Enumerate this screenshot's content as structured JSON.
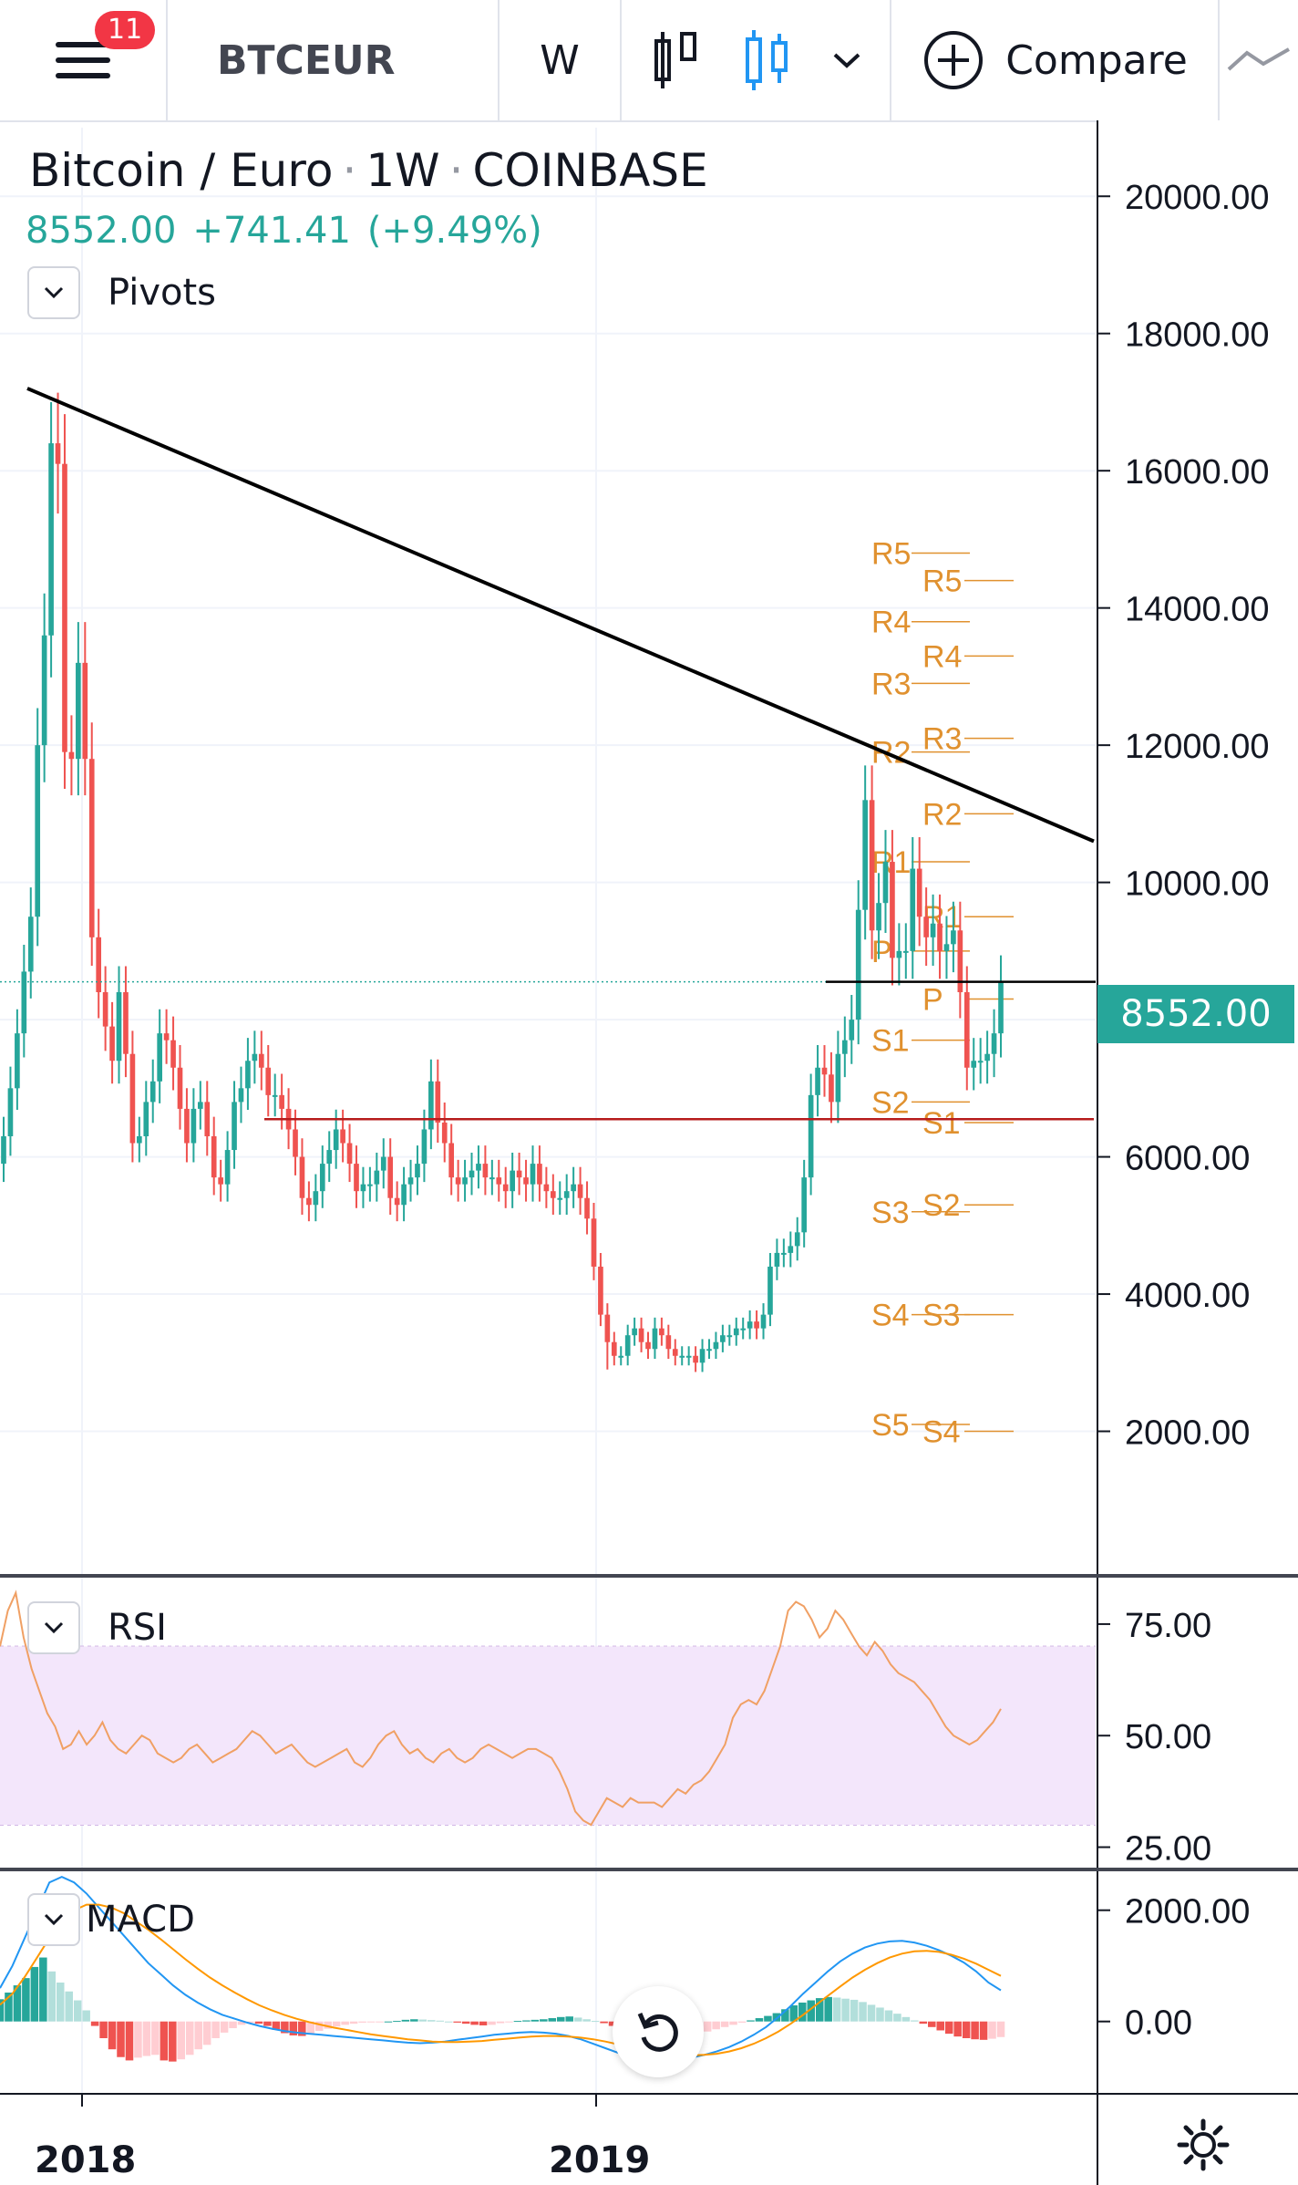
{
  "toolbar": {
    "notification_count": "11",
    "symbol": "BTCEUR",
    "interval": "W",
    "compare_label": "Compare",
    "icons": [
      "hamburger-menu-icon",
      "bar-style-icon",
      "candle-style-icon",
      "chevron-down-icon",
      "plus-circle-icon",
      "line-indicator-icon"
    ]
  },
  "legend": {
    "name": "Bitcoin / Euro",
    "interval": "1W",
    "exchange": "COINBASE",
    "last": "8552.00",
    "change": "+741.41",
    "change_pct": "(+9.49%)",
    "study_label": "Pivots"
  },
  "colors": {
    "up": "#26a69a",
    "down": "#ef5350",
    "pivot": "#e0912f",
    "rsi_line": "#f0a064",
    "rsi_band": "#f3e6fb",
    "macd": "#2196f3",
    "signal": "#ff9800",
    "price_tag": "#26a69a"
  },
  "price_tag": "8552.00",
  "rsi_pane": {
    "label": "RSI",
    "ticks": [
      "75.00",
      "50.00",
      "25.00"
    ]
  },
  "macd_pane": {
    "label": "MACD",
    "ticks": [
      "2000.00",
      "0.00"
    ]
  },
  "x_labels": [
    "2018",
    "2019"
  ],
  "pivots": {
    "set1": [
      "R5",
      "R4",
      "R3",
      "R2",
      "R1",
      "P",
      "S1",
      "S2",
      "S3",
      "S4",
      "S5"
    ],
    "set2": [
      "R5",
      "R4",
      "R3",
      "R2",
      "R1",
      "P",
      "S1",
      "S2",
      "S3",
      "S4"
    ]
  },
  "chart_data": [
    {
      "type": "candlestick",
      "title": "Bitcoin / Euro · 1W · COINBASE",
      "ylim": [
        0,
        21000
      ],
      "y_ticks": [
        "20000.00",
        "18000.00",
        "16000.00",
        "14000.00",
        "12000.00",
        "10000.00",
        "8000.00",
        "6000.00",
        "4000.00",
        "2000.00"
      ],
      "x_ticks": [
        "2018",
        "2019"
      ],
      "close": [
        6300,
        7000,
        7800,
        8700,
        9500,
        12000,
        13600,
        16400,
        16100,
        11900,
        11800,
        13200,
        11800,
        9200,
        8400,
        7900,
        7400,
        8400,
        7500,
        6200,
        6300,
        6800,
        7100,
        7800,
        7700,
        7300,
        6700,
        6200,
        6700,
        6800,
        6300,
        5700,
        5600,
        6100,
        6800,
        7000,
        7400,
        7500,
        7300,
        6900,
        6900,
        6700,
        6400,
        6000,
        5400,
        5300,
        5500,
        5900,
        6100,
        6400,
        6200,
        5900,
        5500,
        5600,
        5600,
        5800,
        6000,
        5400,
        5300,
        5600,
        5700,
        5900,
        6400,
        7100,
        6500,
        6200,
        5700,
        5600,
        5700,
        5800,
        5900,
        5700,
        5700,
        5600,
        5500,
        5800,
        5700,
        5600,
        5900,
        5600,
        5500,
        5400,
        5400,
        5500,
        5600,
        5400,
        5100,
        4400,
        3700,
        3300,
        3100,
        3100,
        3400,
        3500,
        3300,
        3200,
        3500,
        3400,
        3200,
        3100,
        3100,
        3100,
        3000,
        3200,
        3200,
        3300,
        3400,
        3400,
        3500,
        3500,
        3600,
        3500,
        3700,
        4400,
        4600,
        4600,
        4700,
        4900,
        5700,
        6900,
        7300,
        7200,
        6800,
        7500,
        7700,
        8000,
        9600,
        11200,
        9300,
        9700,
        10300,
        8900,
        9000,
        9000,
        10200,
        9500,
        9200,
        9400,
        9000,
        9100,
        9300,
        8400,
        7300,
        7400,
        7400,
        7500,
        7800,
        8552
      ],
      "high": 17000,
      "low": 2900,
      "trendline": {
        "from": {
          "week": 0,
          "price": 17200
        },
        "to": {
          "week": 149,
          "price": 10600
        }
      },
      "support_line": 6550,
      "last_price": 8552.0
    },
    {
      "type": "line",
      "title": "RSI",
      "ylim": [
        20,
        85
      ],
      "band": [
        30,
        70
      ],
      "y_ticks": [
        "75.00",
        "50.00",
        "25.00"
      ],
      "values": [
        70,
        78,
        82,
        72,
        65,
        60,
        55,
        52,
        47,
        48,
        51,
        48,
        50,
        53,
        49,
        47,
        46,
        48,
        50,
        49,
        46,
        45,
        44,
        45,
        47,
        48,
        46,
        44,
        45,
        46,
        47,
        49,
        51,
        50,
        48,
        46,
        47,
        48,
        46,
        44,
        43,
        44,
        45,
        46,
        47,
        44,
        43,
        45,
        48,
        50,
        51,
        48,
        46,
        47,
        45,
        44,
        46,
        47,
        45,
        44,
        45,
        47,
        48,
        47,
        46,
        45,
        46,
        47,
        47,
        46,
        45,
        42,
        38,
        33,
        31,
        30,
        33,
        36,
        35,
        34,
        36,
        35,
        35,
        35,
        34,
        36,
        38,
        37,
        39,
        40,
        42,
        45,
        48,
        54,
        57,
        58,
        57,
        60,
        65,
        70,
        78,
        80,
        79,
        76,
        72,
        74,
        78,
        76,
        73,
        70,
        68,
        71,
        69,
        66,
        64,
        63,
        62,
        60,
        58,
        55,
        52,
        50,
        49,
        48,
        49,
        51,
        53,
        56
      ],
      "color": "#f0a064"
    },
    {
      "type": "bar+line",
      "title": "MACD",
      "ylim": [
        -1300,
        2700
      ],
      "y_ticks": [
        "2000.00",
        "0.00"
      ],
      "histogram": [
        400,
        520,
        650,
        780,
        980,
        1150,
        900,
        700,
        540,
        380,
        200,
        -80,
        -300,
        -500,
        -640,
        -700,
        -650,
        -620,
        -600,
        -700,
        -720,
        -680,
        -600,
        -500,
        -420,
        -300,
        -200,
        -120,
        -60,
        -20,
        -40,
        -80,
        -150,
        -210,
        -250,
        -260,
        -220,
        -170,
        -130,
        -90,
        -60,
        -40,
        -20,
        -10,
        -5,
        0,
        10,
        30,
        40,
        35,
        25,
        15,
        0,
        -20,
        -40,
        -60,
        -70,
        -60,
        -30,
        -10,
        10,
        20,
        30,
        40,
        60,
        80,
        90,
        70,
        40,
        10,
        -30,
        -80,
        -150,
        -250,
        -340,
        -400,
        -420,
        -400,
        -350,
        -300,
        -260,
        -220,
        -180,
        -140,
        -100,
        -60,
        -20,
        20,
        60,
        100,
        150,
        220,
        290,
        340,
        380,
        420,
        440,
        430,
        410,
        390,
        350,
        300,
        250,
        200,
        140,
        80,
        20,
        -40,
        -100,
        -160,
        -220,
        -270,
        -300,
        -320,
        -330,
        -310,
        -280
      ],
      "macd": [
        600,
        1000,
        1500,
        2000,
        2500,
        2600,
        2500,
        2300,
        2050,
        1800,
        1550,
        1300,
        1050,
        850,
        650,
        480,
        340,
        220,
        120,
        50,
        -20,
        -80,
        -130,
        -170,
        -200,
        -220,
        -240,
        -260,
        -280,
        -300,
        -320,
        -340,
        -360,
        -380,
        -390,
        -380,
        -360,
        -330,
        -300,
        -270,
        -240,
        -220,
        -200,
        -190,
        -200,
        -220,
        -260,
        -320,
        -400,
        -480,
        -560,
        -620,
        -660,
        -680,
        -690,
        -680,
        -650,
        -600,
        -540,
        -460,
        -360,
        -240,
        -100,
        80,
        280,
        500,
        700,
        900,
        1080,
        1220,
        1330,
        1400,
        1440,
        1450,
        1420,
        1360,
        1280,
        1180,
        1060,
        900,
        700,
        560
      ],
      "signal": [
        300,
        500,
        800,
        1150,
        1500,
        1800,
        2000,
        2100,
        2100,
        2050,
        1950,
        1800,
        1650,
        1480,
        1300,
        1120,
        950,
        790,
        650,
        520,
        400,
        290,
        200,
        120,
        50,
        -10,
        -60,
        -110,
        -150,
        -190,
        -230,
        -260,
        -290,
        -320,
        -340,
        -360,
        -370,
        -370,
        -360,
        -350,
        -330,
        -310,
        -290,
        -270,
        -260,
        -260,
        -270,
        -290,
        -320,
        -360,
        -410,
        -460,
        -510,
        -550,
        -580,
        -600,
        -610,
        -600,
        -580,
        -540,
        -480,
        -400,
        -300,
        -180,
        -40,
        120,
        290,
        460,
        630,
        790,
        930,
        1050,
        1150,
        1220,
        1260,
        1270,
        1250,
        1200,
        1130,
        1040,
        930,
        820
      ],
      "macd_color": "#2196f3",
      "signal_color": "#ff9800"
    }
  ]
}
